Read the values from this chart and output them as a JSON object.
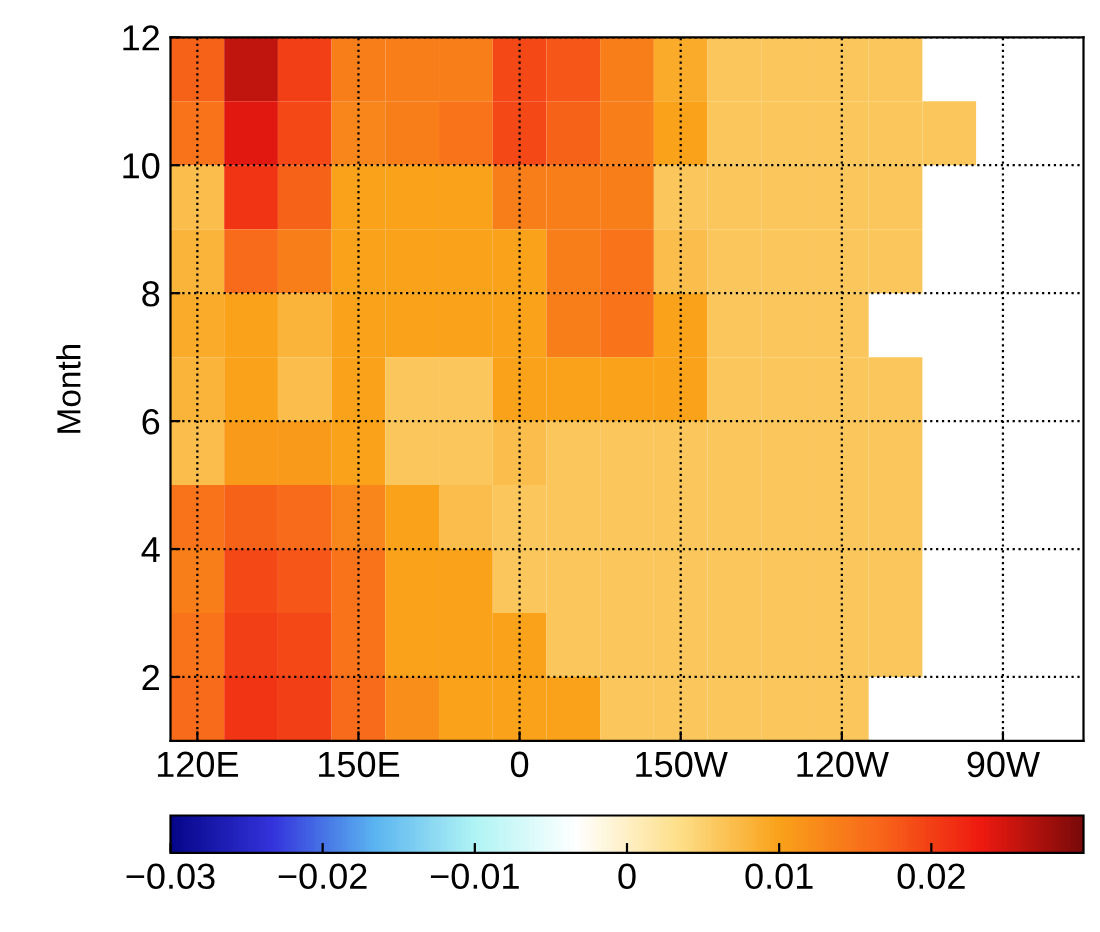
{
  "chart_data": {
    "type": "heatmap",
    "ylabel": "Month",
    "categories": [
      "120E",
      null,
      null,
      "150E",
      null,
      null,
      "0",
      null,
      null,
      "150W",
      null,
      null,
      "120W",
      null,
      null,
      "90W",
      null
    ],
    "y": [
      11.5,
      10.5,
      9.5,
      8.5,
      7.5,
      6.5,
      5.5,
      4.5,
      3.5,
      2.5,
      1.5
    ],
    "cells": [
      [
        0.017,
        0.026,
        0.02,
        0.014,
        0.014,
        0.014,
        0.019,
        0.018,
        0.014,
        0.009,
        0.006,
        0.006,
        0.006,
        0.006,
        null,
        null,
        null
      ],
      [
        0.015,
        0.024,
        0.019,
        0.013,
        0.014,
        0.015,
        0.019,
        0.017,
        0.014,
        0.01,
        0.006,
        0.006,
        0.006,
        0.006,
        0.006,
        null,
        null
      ],
      [
        0.007,
        0.021,
        0.017,
        0.01,
        0.01,
        0.01,
        0.014,
        0.014,
        0.014,
        0.006,
        0.006,
        0.006,
        0.006,
        0.006,
        null,
        null,
        null
      ],
      [
        0.008,
        0.016,
        0.014,
        0.01,
        0.01,
        0.01,
        0.01,
        0.014,
        0.015,
        0.007,
        0.006,
        0.006,
        0.006,
        0.006,
        null,
        null,
        null
      ],
      [
        0.009,
        0.01,
        0.008,
        0.01,
        0.01,
        0.01,
        0.01,
        0.014,
        0.015,
        0.01,
        0.006,
        0.006,
        0.006,
        null,
        null,
        null,
        null
      ],
      [
        0.008,
        0.01,
        0.007,
        0.01,
        0.006,
        0.006,
        0.01,
        0.01,
        0.01,
        0.01,
        0.006,
        0.006,
        0.006,
        0.006,
        null,
        null,
        null
      ],
      [
        0.007,
        0.011,
        0.011,
        0.01,
        0.006,
        0.006,
        0.007,
        0.006,
        0.006,
        0.006,
        0.006,
        0.006,
        0.006,
        0.006,
        null,
        null,
        null
      ],
      [
        0.015,
        0.017,
        0.016,
        0.013,
        0.01,
        0.007,
        0.006,
        0.006,
        0.006,
        0.006,
        0.006,
        0.006,
        0.006,
        0.006,
        null,
        null,
        null
      ],
      [
        0.014,
        0.019,
        0.018,
        0.015,
        0.01,
        0.01,
        0.006,
        0.006,
        0.006,
        0.006,
        0.006,
        0.006,
        0.006,
        0.006,
        null,
        null,
        null
      ],
      [
        0.015,
        0.02,
        0.019,
        0.015,
        0.01,
        0.01,
        0.01,
        0.006,
        0.006,
        0.006,
        0.006,
        0.006,
        0.006,
        0.006,
        null,
        null,
        null
      ],
      [
        0.016,
        0.021,
        0.02,
        0.016,
        0.012,
        0.01,
        0.01,
        0.01,
        0.006,
        0.006,
        0.006,
        0.006,
        0.006,
        null,
        null,
        null,
        null
      ]
    ],
    "ylim": [
      1,
      12
    ],
    "yticks": [
      2,
      4,
      6,
      8,
      10,
      12
    ],
    "clim": [
      -0.03,
      0.03
    ],
    "cticks": [
      {
        "value": -0.03,
        "label": "−0.03"
      },
      {
        "value": -0.02,
        "label": "−0.02"
      },
      {
        "value": -0.01,
        "label": "−0.01"
      },
      {
        "value": 0,
        "label": "0"
      },
      {
        "value": 0.01,
        "label": "0.01"
      },
      {
        "value": 0.02,
        "label": "0.02"
      }
    ],
    "colors": [
      "#06068a",
      "#3434dc",
      "#5ab4f0",
      "#b0f4f4",
      "#ffffff",
      "#fde08a",
      "#f9a21a",
      "#f8661a",
      "#ee1a10",
      "#7a0a0a"
    ],
    "grid": true,
    "line_style": "dotted"
  }
}
